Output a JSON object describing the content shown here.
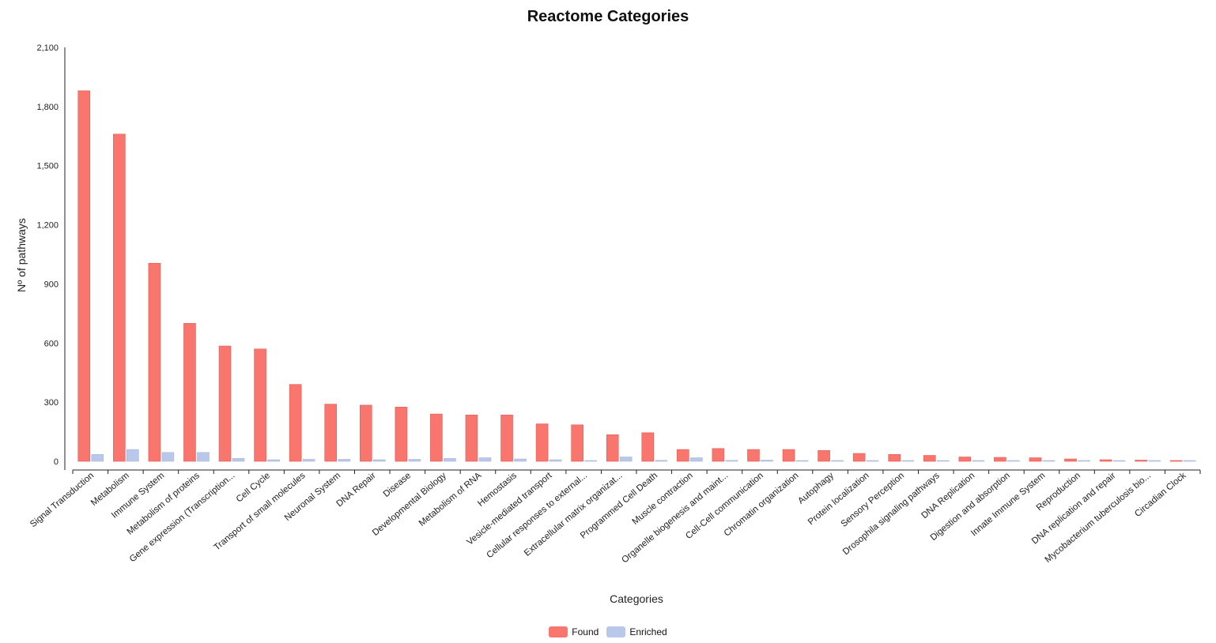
{
  "chart_data": {
    "type": "bar",
    "title": "Reactome Categories",
    "xlabel": "Categories",
    "ylabel": "Nº of pathways",
    "ylim": [
      0,
      2100
    ],
    "yticks": [
      "0",
      "300",
      "600",
      "900",
      "1,200",
      "1,500",
      "1,800",
      "2,100"
    ],
    "categories": [
      "Signal Transduction",
      "Metabolism",
      "Immune System",
      "Metabolism of proteins",
      "Gene expression (Transcription...",
      "Cell Cycle",
      "Transport of small molecules",
      "Neuronal System",
      "DNA Repair",
      "Disease",
      "Developmental Biology",
      "Metabolism of RNA",
      "Hemostasis",
      "Vesicle-mediated transport",
      "Cellular responses to external...",
      "Extracellular matrix organizat...",
      "Programmed Cell Death",
      "Muscle contraction",
      "Organelle biogenesis and maint...",
      "Cell-Cell communication",
      "Chromatin organization",
      "Autophagy",
      "Protein localization",
      "Sensory Perception",
      "Drosophila signaling pathways",
      "DNA Replication",
      "Digestion and absorption",
      "Innate Immune System",
      "Reproduction",
      "DNA replication and repair",
      "Mycobacterium tuberculosis bio...",
      "Circadian Clock"
    ],
    "series": [
      {
        "name": "Found",
        "color": "#f8766d",
        "values": [
          1880,
          1660,
          1005,
          700,
          585,
          570,
          390,
          290,
          285,
          275,
          240,
          235,
          235,
          190,
          185,
          135,
          145,
          60,
          65,
          60,
          60,
          55,
          40,
          35,
          30,
          22,
          20,
          18,
          12,
          8,
          6,
          4
        ]
      },
      {
        "name": "Enriched",
        "color": "#b8c7ea",
        "values": [
          35,
          60,
          45,
          45,
          15,
          8,
          10,
          10,
          8,
          10,
          15,
          18,
          12,
          8,
          4,
          22,
          5,
          18,
          5,
          6,
          3,
          3,
          3,
          3,
          3,
          3,
          3,
          2,
          2,
          2,
          2,
          2
        ]
      }
    ],
    "grid": false,
    "legend_position": "bottom-center"
  }
}
